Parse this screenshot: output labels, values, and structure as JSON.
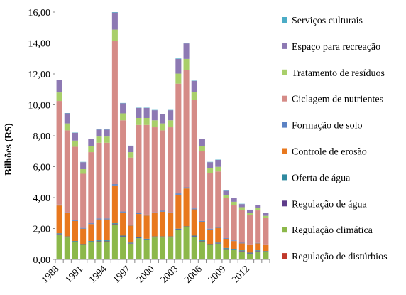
{
  "chart_data": {
    "type": "bar",
    "stacked": true,
    "title": "",
    "xlabel": "",
    "ylabel": "Bilhões (R$)",
    "ylim": [
      0,
      16
    ],
    "yticks": [
      "0,00",
      "2,00",
      "4,00",
      "6,00",
      "8,00",
      "10,00",
      "12,00",
      "14,00",
      "16,00"
    ],
    "xtick_labels": [
      "1988",
      "1991",
      "1994",
      "1997",
      "2000",
      "2003",
      "2006",
      "2009",
      "2012"
    ],
    "grid": false,
    "legend_position": "right",
    "categories": [
      "1988",
      "1989",
      "1990",
      "1991",
      "1992",
      "1993",
      "1994",
      "1995",
      "1996",
      "1997",
      "1998",
      "1999",
      "2000",
      "2001",
      "2002",
      "2003",
      "2004",
      "2005",
      "2006",
      "2007",
      "2008",
      "2009",
      "2010",
      "2011",
      "2012",
      "2013",
      "2014"
    ],
    "series": [
      {
        "name": "Regulação de distúrbios",
        "color": "#c0392b",
        "values": [
          0.02,
          0.02,
          0.02,
          0.02,
          0.02,
          0.02,
          0.02,
          0.02,
          0.02,
          0.02,
          0.02,
          0.02,
          0.02,
          0.02,
          0.02,
          0.02,
          0.02,
          0.02,
          0.02,
          0.02,
          0.02,
          0.02,
          0.02,
          0.02,
          0.02,
          0.02,
          0.02
        ]
      },
      {
        "name": "Regulação climática",
        "color": "#8cb84a",
        "values": [
          1.6,
          1.4,
          1.1,
          0.9,
          1.1,
          1.15,
          1.15,
          2.25,
          1.45,
          1.0,
          1.35,
          1.25,
          1.4,
          1.4,
          1.4,
          1.9,
          2.05,
          1.45,
          1.15,
          0.9,
          1.0,
          0.65,
          0.6,
          0.5,
          0.35,
          0.5,
          0.45
        ]
      },
      {
        "name": "Regulação de água",
        "color": "#5e3c8a",
        "values": [
          0.03,
          0.03,
          0.03,
          0.03,
          0.03,
          0.03,
          0.03,
          0.03,
          0.03,
          0.03,
          0.03,
          0.03,
          0.03,
          0.03,
          0.03,
          0.03,
          0.03,
          0.03,
          0.03,
          0.03,
          0.03,
          0.03,
          0.03,
          0.03,
          0.03,
          0.03,
          0.03
        ]
      },
      {
        "name": "Oferta de água",
        "color": "#2f8aa0",
        "values": [
          0.04,
          0.04,
          0.04,
          0.04,
          0.04,
          0.04,
          0.04,
          0.04,
          0.04,
          0.04,
          0.04,
          0.04,
          0.04,
          0.04,
          0.04,
          0.04,
          0.04,
          0.04,
          0.04,
          0.04,
          0.04,
          0.04,
          0.04,
          0.04,
          0.04,
          0.04,
          0.04
        ]
      },
      {
        "name": "Controle de erosão",
        "color": "#e8781e",
        "values": [
          1.8,
          1.5,
          1.3,
          1.0,
          1.1,
          1.35,
          1.35,
          2.45,
          1.5,
          1.1,
          1.5,
          1.5,
          1.5,
          1.6,
          1.5,
          2.2,
          2.45,
          1.7,
          1.2,
          0.95,
          0.95,
          0.6,
          0.5,
          0.45,
          0.5,
          0.45,
          0.4
        ]
      },
      {
        "name": "Formação de solo",
        "color": "#5b82c4",
        "values": [
          0.06,
          0.06,
          0.05,
          0.05,
          0.05,
          0.06,
          0.06,
          0.08,
          0.06,
          0.05,
          0.06,
          0.06,
          0.06,
          0.06,
          0.06,
          0.08,
          0.08,
          0.06,
          0.05,
          0.05,
          0.05,
          0.04,
          0.04,
          0.04,
          0.03,
          0.03,
          0.03
        ]
      },
      {
        "name": "Ciclagem de nutrientes",
        "color": "#d58b87",
        "values": [
          6.7,
          5.3,
          4.75,
          3.5,
          4.6,
          4.9,
          4.9,
          9.25,
          5.9,
          4.35,
          5.7,
          5.8,
          5.5,
          5.2,
          5.5,
          7.1,
          7.6,
          7.0,
          4.5,
          3.6,
          3.6,
          2.6,
          2.3,
          2.1,
          1.9,
          2.1,
          1.7
        ]
      },
      {
        "name": "Tratamento de resíduos",
        "color": "#a9cf6a",
        "values": [
          0.55,
          0.45,
          0.4,
          0.3,
          0.4,
          0.4,
          0.4,
          0.75,
          0.45,
          0.35,
          0.45,
          0.45,
          0.45,
          0.45,
          0.45,
          0.65,
          0.7,
          0.55,
          0.35,
          0.3,
          0.3,
          0.2,
          0.2,
          0.2,
          0.15,
          0.15,
          0.15
        ]
      },
      {
        "name": "Espaço para recreação",
        "color": "#8d79b3",
        "values": [
          0.8,
          0.65,
          0.5,
          0.45,
          0.45,
          0.45,
          0.45,
          1.1,
          0.65,
          0.4,
          0.65,
          0.65,
          0.65,
          0.6,
          0.65,
          0.95,
          1.0,
          0.7,
          0.45,
          0.4,
          0.45,
          0.3,
          0.25,
          0.2,
          0.18,
          0.18,
          0.18
        ]
      },
      {
        "name": "Serviços culturais",
        "color": "#4bacc6",
        "values": [
          0.02,
          0.02,
          0.02,
          0.02,
          0.02,
          0.02,
          0.02,
          0.03,
          0.02,
          0.02,
          0.02,
          0.02,
          0.02,
          0.02,
          0.02,
          0.03,
          0.03,
          0.02,
          0.02,
          0.02,
          0.02,
          0.02,
          0.02,
          0.02,
          0.02,
          0.02,
          0.02
        ]
      }
    ]
  }
}
